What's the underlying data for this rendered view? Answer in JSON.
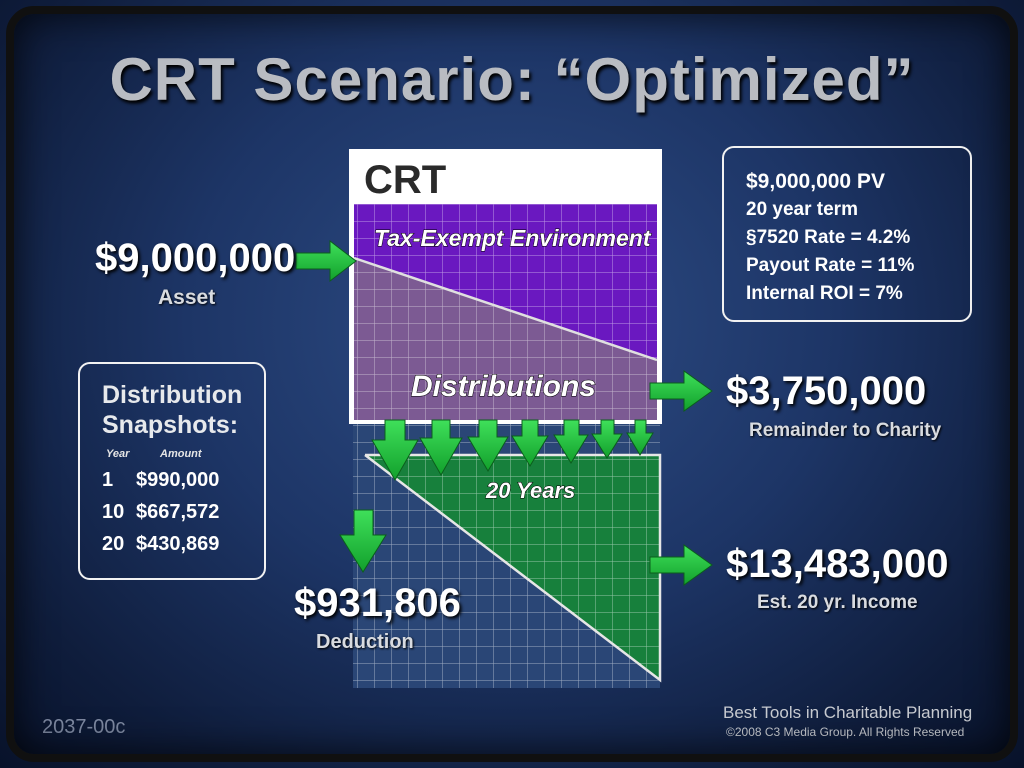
{
  "title": "CRT Scenario: “Optimized”",
  "crt_label": "CRT",
  "tax_exempt_label": "Tax-Exempt Environment",
  "distributions_label": "Distributions",
  "years_label": "20 Years",
  "asset": {
    "value": "$9,000,000",
    "label": "Asset"
  },
  "remainder": {
    "value": "$3,750,000",
    "label": "Remainder to Charity"
  },
  "income": {
    "value": "$13,483,000",
    "label": "Est. 20 yr. Income"
  },
  "deduction": {
    "value": "$931,806",
    "label": "Deduction"
  },
  "parameters": [
    "$9,000,000 PV",
    "20 year term",
    "§7520 Rate = 4.2%",
    "Payout Rate = 11%",
    "Internal ROI = 7%"
  ],
  "snapshots": {
    "title_line1": "Distribution",
    "title_line2": "Snapshots:",
    "col_year": "Year",
    "col_amount": "Amount",
    "rows": [
      {
        "year": "1",
        "amount": "$990,000"
      },
      {
        "year": "10",
        "amount": "$667,572"
      },
      {
        "year": "20",
        "amount": "$430,869"
      }
    ]
  },
  "footer": {
    "code": "2037-00c",
    "brand": "Best Tools in Charitable Planning",
    "copyright": "©2008 C3 Media Group. All Rights Reserved"
  },
  "colors": {
    "purple": "#6a18c0",
    "mauve": "#7c5a93",
    "green": "#17803c",
    "arrow": "#27c341",
    "grid_bg": "#2c4a7c"
  }
}
